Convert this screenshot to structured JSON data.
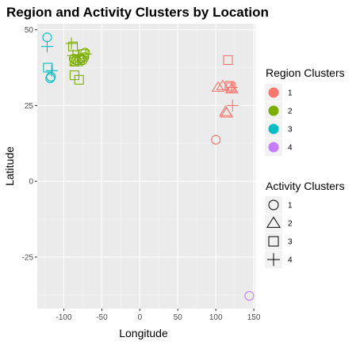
{
  "chart_data": {
    "type": "scatter",
    "title": "Region and Activity Clusters by Location",
    "xlabel": "Longitude",
    "ylabel": "Latitude",
    "xlim": [
      -135,
      152
    ],
    "ylim": [
      -42,
      52
    ],
    "xticks": [
      -100,
      -50,
      0,
      50,
      100,
      150
    ],
    "yticks": [
      -25,
      0,
      25,
      50
    ],
    "grid": true,
    "legend_region": {
      "title": "Region Clusters",
      "placement": "right",
      "entries": [
        {
          "label": "1",
          "color": "#F8766D"
        },
        {
          "label": "2",
          "color": "#7CAE00"
        },
        {
          "label": "3",
          "color": "#00BFC4"
        },
        {
          "label": "4",
          "color": "#C77CFF"
        }
      ]
    },
    "legend_activity": {
      "title": "Activity Clusters",
      "placement": "right",
      "entries": [
        {
          "label": "1",
          "shape": "circle"
        },
        {
          "label": "2",
          "shape": "triangle"
        },
        {
          "label": "3",
          "shape": "square"
        },
        {
          "label": "4",
          "shape": "plus"
        }
      ]
    },
    "points": [
      {
        "x": -122,
        "y": 47.5,
        "region": "3",
        "activity": "1"
      },
      {
        "x": -122,
        "y": 44.5,
        "region": "3",
        "activity": "4"
      },
      {
        "x": -121,
        "y": 37.5,
        "region": "3",
        "activity": "3"
      },
      {
        "x": -118,
        "y": 34.0,
        "region": "3",
        "activity": "1"
      },
      {
        "x": -117,
        "y": 34.5,
        "region": "3",
        "activity": "1"
      },
      {
        "x": -116,
        "y": 36.5,
        "region": "3",
        "activity": "4"
      },
      {
        "x": -90,
        "y": 45.5,
        "region": "2",
        "activity": "4"
      },
      {
        "x": -88,
        "y": 44.5,
        "region": "2",
        "activity": "3"
      },
      {
        "x": -88,
        "y": 41.5,
        "region": "2",
        "activity": "4"
      },
      {
        "x": -87,
        "y": 40.5,
        "region": "2",
        "activity": "1"
      },
      {
        "x": -86,
        "y": 39.5,
        "region": "2",
        "activity": "3"
      },
      {
        "x": -84,
        "y": 40.0,
        "region": "2",
        "activity": "1"
      },
      {
        "x": -83,
        "y": 39.5,
        "region": "2",
        "activity": "2"
      },
      {
        "x": -81,
        "y": 41.5,
        "region": "2",
        "activity": "4"
      },
      {
        "x": -80,
        "y": 40.5,
        "region": "2",
        "activity": "1"
      },
      {
        "x": -79,
        "y": 40.0,
        "region": "2",
        "activity": "3"
      },
      {
        "x": -77,
        "y": 40.5,
        "region": "2",
        "activity": "1"
      },
      {
        "x": -75,
        "y": 40.0,
        "region": "2",
        "activity": "1"
      },
      {
        "x": -74,
        "y": 42.0,
        "region": "2",
        "activity": "3"
      },
      {
        "x": -73,
        "y": 41.0,
        "region": "2",
        "activity": "1"
      },
      {
        "x": -72,
        "y": 42.5,
        "region": "2",
        "activity": "1"
      },
      {
        "x": -71,
        "y": 42.0,
        "region": "2",
        "activity": "4"
      },
      {
        "x": -86,
        "y": 35.0,
        "region": "2",
        "activity": "3"
      },
      {
        "x": -80,
        "y": 33.5,
        "region": "2",
        "activity": "3"
      },
      {
        "x": 116,
        "y": 40.0,
        "region": "1",
        "activity": "3"
      },
      {
        "x": 103,
        "y": 31.0,
        "region": "1",
        "activity": "2"
      },
      {
        "x": 109,
        "y": 31.5,
        "region": "1",
        "activity": "2"
      },
      {
        "x": 118,
        "y": 31.5,
        "region": "1",
        "activity": "3"
      },
      {
        "x": 120,
        "y": 31.0,
        "region": "1",
        "activity": "3"
      },
      {
        "x": 121,
        "y": 31.0,
        "region": "1",
        "activity": "4"
      },
      {
        "x": 121,
        "y": 30.5,
        "region": "1",
        "activity": "2"
      },
      {
        "x": 114,
        "y": 22.5,
        "region": "1",
        "activity": "2"
      },
      {
        "x": 113,
        "y": 23.0,
        "region": "1",
        "activity": "2"
      },
      {
        "x": 122,
        "y": 25.0,
        "region": "1",
        "activity": "4"
      },
      {
        "x": 100,
        "y": 13.7,
        "region": "1",
        "activity": "1"
      },
      {
        "x": 144,
        "y": -37.8,
        "region": "4",
        "activity": "1"
      }
    ]
  }
}
